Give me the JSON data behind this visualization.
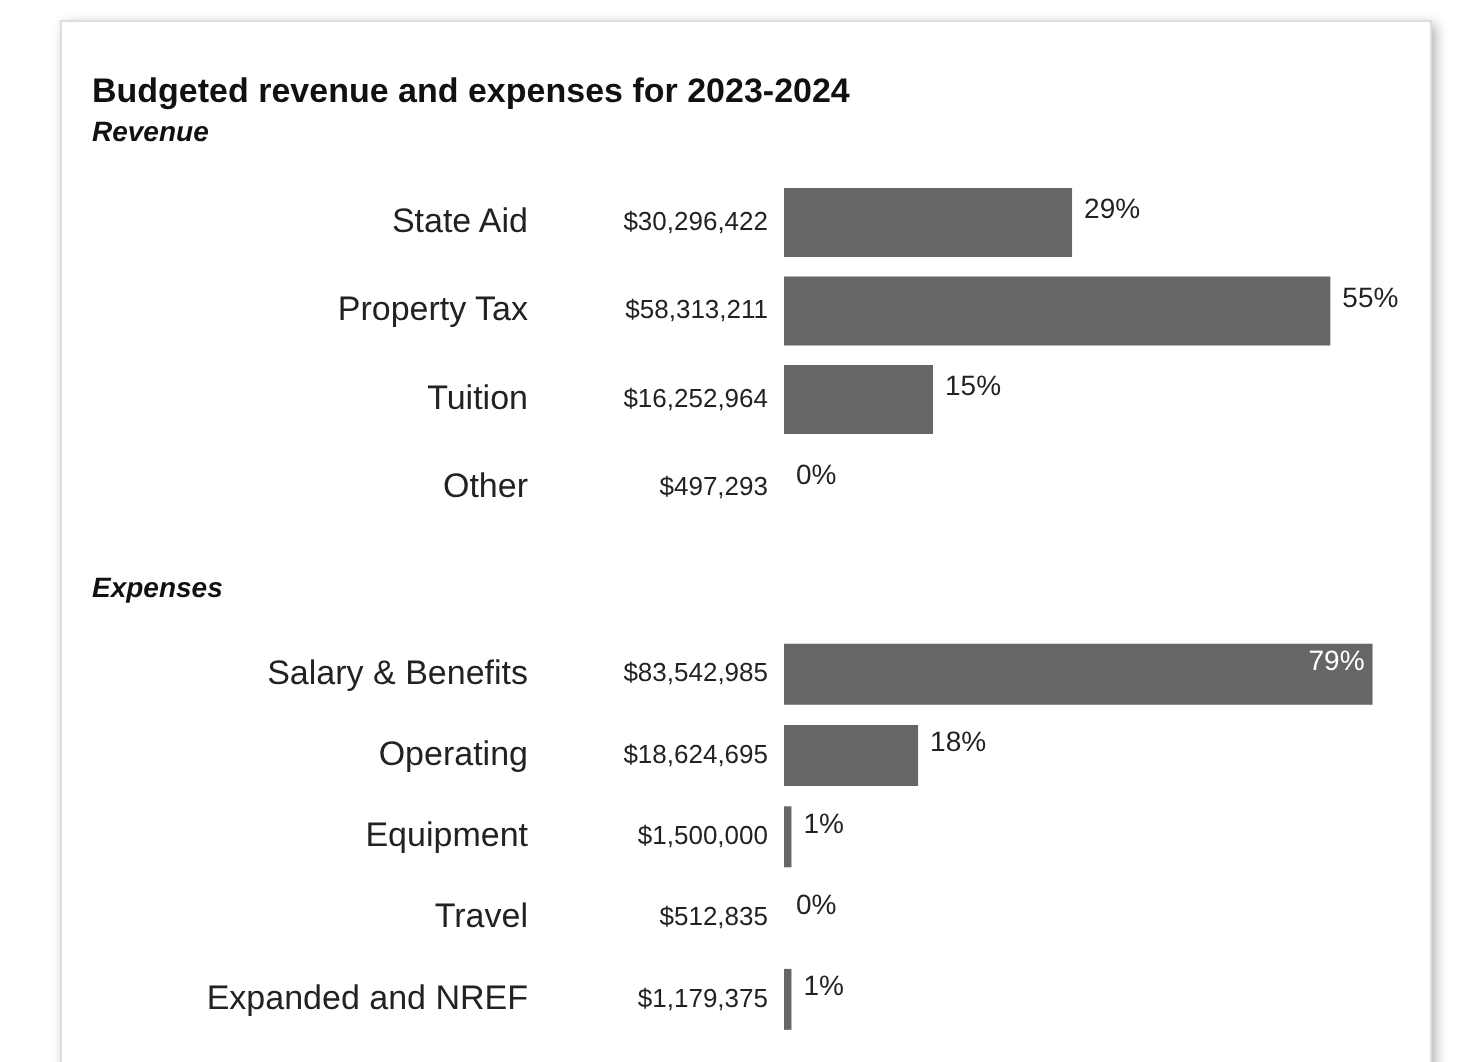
{
  "chart_data": [
    {
      "type": "bar",
      "orientation": "horizontal",
      "title": "Budgeted revenue and expenses for 2023-2024",
      "subtitle": "Revenue",
      "categories": [
        "State Aid",
        "Property Tax",
        "Tuition",
        "Other"
      ],
      "values": [
        29,
        55,
        15,
        0
      ],
      "value_labels": [
        "29%",
        "55%",
        "15%",
        "0%"
      ],
      "color": "#666666",
      "grid": false,
      "legend": false,
      "tick_labels": "y",
      "annotations": [
        "$30,296,422",
        "$58,313,211",
        "$16,252,964",
        "$497,293"
      ]
    },
    {
      "type": "bar",
      "orientation": "horizontal",
      "subtitle": "Expenses",
      "categories": [
        "Salary & Benefits",
        "Operating",
        "Equipment",
        "Travel",
        "Expanded and NREF"
      ],
      "values": [
        79,
        18,
        1,
        0,
        1
      ],
      "value_labels": [
        "79%",
        "18%",
        "1%",
        "0%",
        "1%"
      ],
      "color": "#666666",
      "grid": false,
      "legend": false,
      "tick_labels": "y",
      "annotations": [
        "$83,542,985",
        "$18,624,695",
        "$1,500,000",
        "$512,835",
        "$1,179,375"
      ]
    }
  ]
}
